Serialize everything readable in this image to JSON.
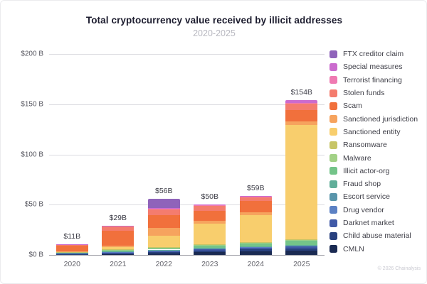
{
  "header": {
    "title": "Total cryptocurrency value received by illicit addresses",
    "subtitle": "2020-2025"
  },
  "footer": {
    "attribution": "© 2026 Chainalysis"
  },
  "chart_data": {
    "type": "bar",
    "stacked": true,
    "title": "Total cryptocurrency value received by illicit addresses",
    "subtitle": "2020-2025",
    "categories": [
      "2020",
      "2021",
      "2022",
      "2023",
      "2024",
      "2025"
    ],
    "totals_labels": [
      "$11B",
      "$29B",
      "$56B",
      "$50B",
      "$59B",
      "$154B"
    ],
    "totals_values": [
      11,
      29,
      56,
      50,
      59,
      154
    ],
    "ylabel": "",
    "xlabel": "",
    "ylim": [
      0,
      200
    ],
    "grid": true,
    "legend_position": "right",
    "y_axis": {
      "tick_labels": [
        "$0 B",
        "$50 B",
        "$100 B",
        "$150 B",
        "$200 B"
      ],
      "tick_values": [
        0,
        50,
        100,
        150,
        200
      ]
    },
    "series": [
      {
        "name": "FTX creditor claim",
        "color": "#8f63ba",
        "values": [
          0,
          0,
          9.7,
          0,
          0,
          0
        ]
      },
      {
        "name": "Special measures",
        "color": "#cb6bce",
        "values": [
          0.1,
          0.3,
          0.5,
          0.5,
          1.2,
          2.5
        ]
      },
      {
        "name": "Terrorist financing",
        "color": "#ef7ab2",
        "values": [
          0.1,
          0.3,
          0.5,
          0.5,
          0.7,
          0.9
        ]
      },
      {
        "name": "Stolen funds",
        "color": "#f47c6e",
        "values": [
          1.2,
          4.5,
          5.5,
          5.0,
          3.5,
          6.5
        ]
      },
      {
        "name": "Scam",
        "color": "#f1703c",
        "values": [
          6.0,
          14.5,
          13.0,
          10.0,
          11.5,
          11.0
        ]
      },
      {
        "name": "Sanctioned jurisdiction",
        "color": "#f6a35e",
        "values": [
          0.3,
          1.5,
          8.0,
          3.0,
          2.5,
          3.5
        ]
      },
      {
        "name": "Sanctioned entity",
        "color": "#f8ce6d",
        "values": [
          0.3,
          2.5,
          11.0,
          20.5,
          27.0,
          114.0
        ]
      },
      {
        "name": "Ransomware",
        "color": "#c7c566",
        "values": [
          0.2,
          0.5,
          0.5,
          0.7,
          0.5,
          0.5
        ]
      },
      {
        "name": "Malware",
        "color": "#a2d186",
        "values": [
          0.2,
          0.3,
          0.5,
          0.5,
          0.5,
          0.5
        ]
      },
      {
        "name": "Illicit actor-org",
        "color": "#74c489",
        "values": [
          0.3,
          1.0,
          1.5,
          2.5,
          3.0,
          5.0
        ]
      },
      {
        "name": "Fraud shop",
        "color": "#60ae99",
        "values": [
          0.2,
          0.3,
          0.5,
          0.3,
          0.3,
          0.3
        ]
      },
      {
        "name": "Escort service",
        "color": "#5995ab",
        "values": [
          0.1,
          0.2,
          0.3,
          0.3,
          0.3,
          0.3
        ]
      },
      {
        "name": "Drug vendor",
        "color": "#5c81c4",
        "values": [
          0.2,
          0.3,
          0.5,
          0.5,
          0.5,
          0.5
        ]
      },
      {
        "name": "Darknet market",
        "color": "#4059a7",
        "values": [
          1.0,
          1.5,
          1.5,
          1.7,
          2.0,
          2.0
        ]
      },
      {
        "name": "Child abuse material",
        "color": "#28407e",
        "values": [
          0.3,
          0.5,
          1.0,
          1.5,
          2.0,
          2.5
        ]
      },
      {
        "name": "CMLN",
        "color": "#1a2a52",
        "values": [
          0.4,
          0.8,
          1.5,
          2.5,
          3.5,
          4.0
        ]
      }
    ]
  }
}
